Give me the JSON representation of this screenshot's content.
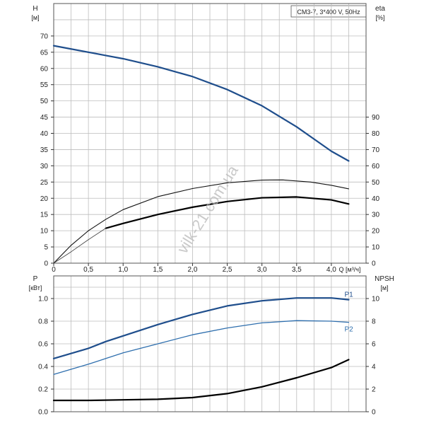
{
  "chart_data": [
    {
      "id": "top",
      "type": "line",
      "model_label": "CM3-7, 3*400 V, 50Hz",
      "xlabel": "Q [м³/ч]",
      "xlim": [
        0,
        4.5
      ],
      "x_ticks": [
        "0",
        "0,5",
        "1,0",
        "1,5",
        "2,0",
        "2,5",
        "3,0",
        "3,5",
        "4,0"
      ],
      "y_left": {
        "label_top": "H",
        "label_bottom": "[м]",
        "lim": [
          0,
          80
        ],
        "ticks": [
          "0",
          "5",
          "10",
          "15",
          "20",
          "25",
          "30",
          "35",
          "40",
          "45",
          "50",
          "55",
          "60",
          "65",
          "70"
        ]
      },
      "y_right": {
        "label_top": "eta",
        "label_bottom": "[%]",
        "lim": [
          0,
          160
        ],
        "ticks": [
          "0",
          "10",
          "20",
          "30",
          "40",
          "50",
          "60",
          "70",
          "80",
          "90"
        ]
      },
      "grid": true,
      "series": [
        {
          "axis": "left",
          "color": "#1f4e8c",
          "width": 2.2,
          "points": [
            [
              0,
              67
            ],
            [
              0.75,
              64
            ],
            [
              1,
              63
            ],
            [
              1.5,
              60.5
            ],
            [
              2,
              57.5
            ],
            [
              2.5,
              53.5
            ],
            [
              3,
              48.5
            ],
            [
              3.5,
              42
            ],
            [
              4,
              34.5
            ],
            [
              4.25,
              31.5
            ]
          ]
        },
        {
          "axis": "right",
          "color": "#111111",
          "width": 1.1,
          "points": [
            [
              0,
              0
            ],
            [
              0.25,
              11
            ],
            [
              0.5,
              20
            ],
            [
              0.75,
              27
            ],
            [
              1,
              33
            ],
            [
              1.5,
              41
            ],
            [
              2,
              46
            ],
            [
              2.5,
              49.5
            ],
            [
              3,
              51.2
            ],
            [
              3.3,
              51.3
            ],
            [
              3.7,
              50
            ],
            [
              4,
              48
            ],
            [
              4.25,
              45.8
            ]
          ]
        },
        {
          "axis": "right",
          "color": "#000000",
          "width": 2.2,
          "points": [
            [
              0.75,
              21.5
            ],
            [
              1,
              24.5
            ],
            [
              1.5,
              30
            ],
            [
              2,
              34.5
            ],
            [
              2.5,
              38
            ],
            [
              3,
              40.3
            ],
            [
              3.5,
              40.8
            ],
            [
              4,
              39
            ],
            [
              4.25,
              36.5
            ]
          ]
        },
        {
          "axis": "right",
          "color": "#444444",
          "width": 0.9,
          "points": [
            [
              0,
              0
            ],
            [
              0.25,
              7
            ],
            [
              0.5,
              14.5
            ],
            [
              0.75,
              21.5
            ]
          ]
        }
      ]
    },
    {
      "id": "bottom",
      "type": "line",
      "xlim": [
        0,
        4.5
      ],
      "y_left": {
        "label_top": "P",
        "label_bottom": "[кВт]",
        "lim": [
          0,
          1.2
        ],
        "ticks": [
          "0.0",
          "0.2",
          "0.4",
          "0.6",
          "0.8",
          "1.0"
        ]
      },
      "y_right": {
        "label_top": "NPSH",
        "label_bottom": "[м]",
        "lim": [
          0,
          12
        ],
        "ticks": [
          "0",
          "2",
          "4",
          "6",
          "8",
          "10"
        ]
      },
      "grid": true,
      "series": [
        {
          "name": "P1",
          "axis": "left",
          "color": "#1f4e8c",
          "width": 2.2,
          "points": [
            [
              0,
              0.47
            ],
            [
              0.5,
              0.56
            ],
            [
              0.75,
              0.62
            ],
            [
              1,
              0.67
            ],
            [
              1.5,
              0.77
            ],
            [
              2,
              0.86
            ],
            [
              2.5,
              0.935
            ],
            [
              3,
              0.98
            ],
            [
              3.5,
              1.005
            ],
            [
              4,
              1.005
            ],
            [
              4.25,
              0.99
            ]
          ]
        },
        {
          "name": "P2",
          "axis": "left",
          "color": "#2f6fae",
          "width": 1.3,
          "points": [
            [
              0,
              0.33
            ],
            [
              0.5,
              0.42
            ],
            [
              0.75,
              0.47
            ],
            [
              1,
              0.52
            ],
            [
              1.5,
              0.6
            ],
            [
              2,
              0.68
            ],
            [
              2.5,
              0.74
            ],
            [
              3,
              0.785
            ],
            [
              3.5,
              0.805
            ],
            [
              4,
              0.8
            ],
            [
              4.25,
              0.79
            ]
          ]
        },
        {
          "axis": "right",
          "color": "#000000",
          "width": 2.2,
          "points": [
            [
              0,
              1.0
            ],
            [
              0.5,
              1.0
            ],
            [
              1,
              1.05
            ],
            [
              1.5,
              1.1
            ],
            [
              2,
              1.25
            ],
            [
              2.5,
              1.6
            ],
            [
              3,
              2.2
            ],
            [
              3.5,
              3.0
            ],
            [
              4,
              3.9
            ],
            [
              4.25,
              4.6
            ]
          ]
        }
      ]
    }
  ],
  "watermark": "vilk-21.com.ua"
}
